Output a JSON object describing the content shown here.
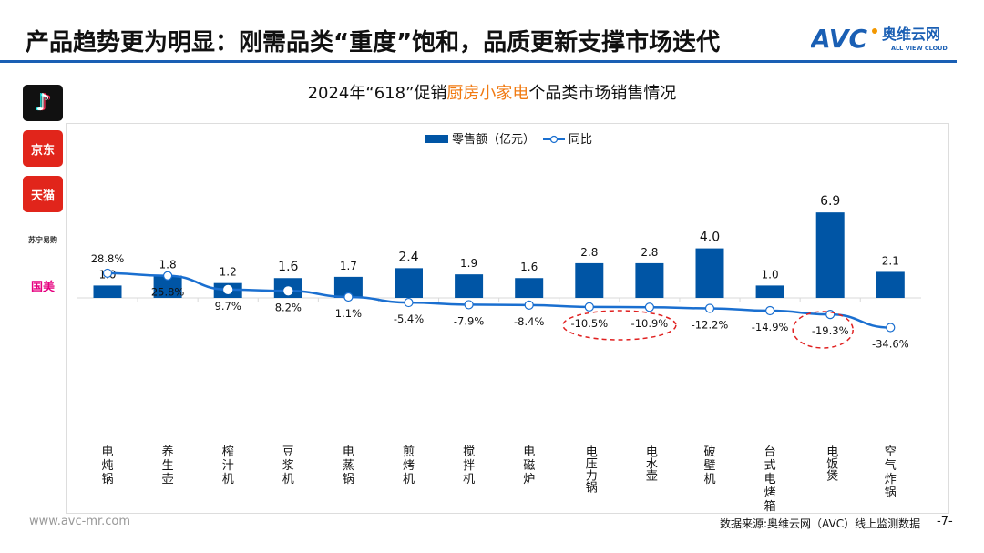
{
  "header": {
    "title": "产品趋势更为明显：刚需品类“重度”饱和，品质更新支撑市场迭代",
    "logo_text": "AVC",
    "logo_cn": "奥维云网",
    "logo_en": "ALL VIEW CLOUD"
  },
  "platforms": [
    {
      "name": "抖音",
      "icon": "tiktok-icon",
      "color": "#111111"
    },
    {
      "name": "京东",
      "icon": "jd-icon",
      "color": "#e1251b"
    },
    {
      "name": "天猫",
      "icon": "tmall-icon",
      "color": "#e1251b"
    },
    {
      "name": "苏宁易购",
      "icon": "suning-icon",
      "color": "#f4a21d"
    },
    {
      "name": "国美",
      "icon": "gome-icon",
      "color": "#e5007f"
    }
  ],
  "chart_data": {
    "type": "bar",
    "title_parts": [
      "2024年“618”促销",
      "厨房小家电",
      "个品类市场销售情况"
    ],
    "legend": {
      "bar": "零售额（亿元）",
      "line": "同比",
      "placement": "top"
    },
    "categories": [
      "电炖锅",
      "养生壶",
      "榨汁机",
      "豆浆机",
      "电蒸锅",
      "煎烤机",
      "搅拌机",
      "电磁炉",
      "电压力锅",
      "电水壶",
      "破壁机",
      "台式电烤箱",
      "电饭煲",
      "空气炸锅"
    ],
    "series": [
      {
        "name": "零售额（亿元）",
        "type": "bar",
        "values": [
          1.0,
          1.8,
          1.2,
          1.6,
          1.7,
          2.4,
          1.9,
          1.6,
          2.8,
          2.8,
          4.0,
          1.0,
          6.9,
          2.1
        ],
        "labels": [
          "1.0",
          "1.8",
          "1.2",
          "1.6",
          "1.7",
          "2.4",
          "1.9",
          "1.6",
          "2.8",
          "2.8",
          "4.0",
          "1.0",
          "6.9",
          "2.1"
        ]
      },
      {
        "name": "同比",
        "type": "line",
        "values": [
          28.8,
          25.8,
          9.7,
          8.2,
          1.1,
          -5.4,
          -7.9,
          -8.4,
          -10.5,
          -10.9,
          -12.2,
          -14.9,
          -19.3,
          -34.6
        ],
        "labels": [
          "28.8%",
          "25.8%",
          "9.7%",
          "8.2%",
          "1.1%",
          "-5.4%",
          "-7.9%",
          "-8.4%",
          "-10.5%",
          "-10.9%",
          "-12.2%",
          "-14.9%",
          "-19.3%",
          "-34.6%"
        ]
      }
    ],
    "highlighted": [
      "电压力锅",
      "电水壶",
      "电饭煲"
    ],
    "colors": {
      "bar": "#0055a5",
      "line": "#1a6fd0",
      "highlight": "#e02020",
      "title_accent": "#f07a12"
    },
    "grid": false
  },
  "footer": {
    "website": "www.avc-mr.com",
    "source": "数据来源:奥维云网（AVC）线上监测数据",
    "page": "-7-"
  }
}
